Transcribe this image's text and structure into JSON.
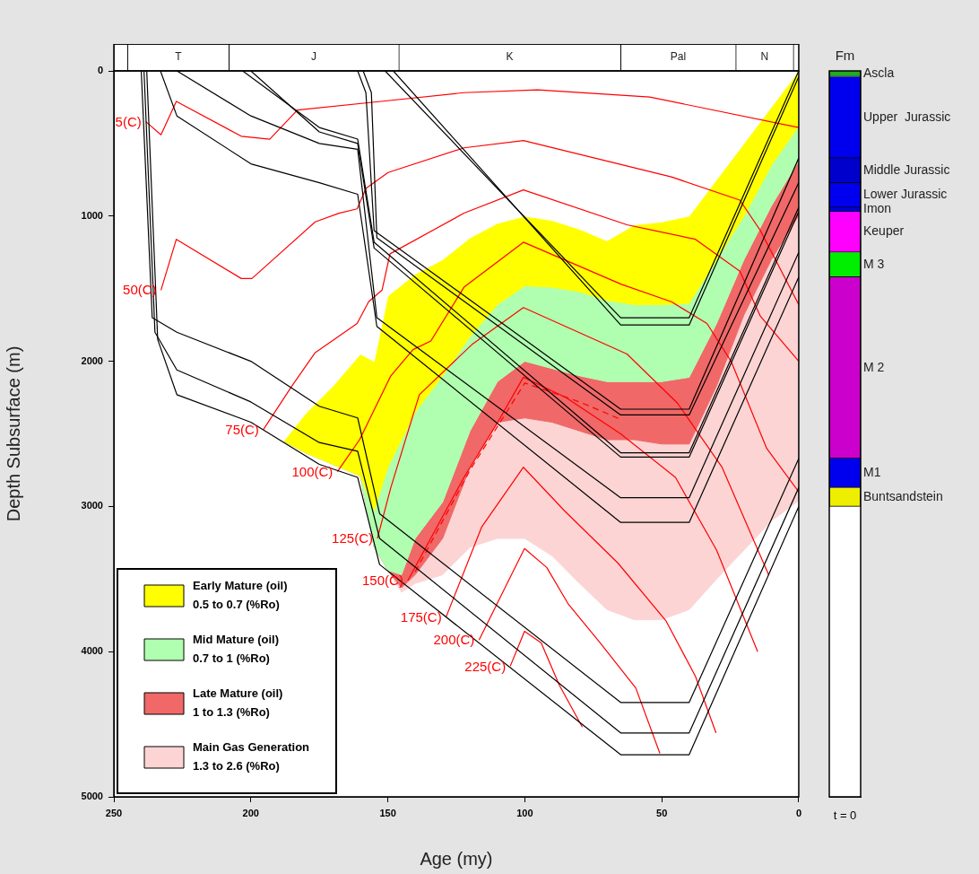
{
  "chart_data": [
    {
      "type": "bar",
      "stacked": true,
      "orientation": "horizontal",
      "categories": [
        null
      ],
      "xlim": [
        250,
        0
      ],
      "tick_labels": false,
      "series": [
        {
          "color": "#ffffff",
          "values": [
            2
          ]
        },
        {
          "name": "N",
          "color": "#ffffff",
          "values": [
            21
          ]
        },
        {
          "name": "Pal",
          "color": "#ffffff",
          "values": [
            42
          ]
        },
        {
          "name": "K",
          "color": "#ffffff",
          "values": [
            81
          ]
        },
        {
          "name": "J",
          "color": "#ffffff",
          "values": [
            62
          ]
        },
        {
          "name": "T",
          "color": "#ffffff",
          "values": [
            37
          ]
        },
        {
          "color": "#ffffff",
          "values": [
            5
          ]
        }
      ]
    },
    {
      "type": "line",
      "xlabel": "Age (my)",
      "ylabel": "Depth Subsurface (m)",
      "xlim": [
        250,
        0
      ],
      "xticks": [
        250,
        200,
        150,
        100,
        50,
        0
      ],
      "ylim": [
        5000,
        0
      ],
      "yticks": [
        0,
        1000,
        2000,
        3000,
        4000,
        5000
      ],
      "legend": "bottom left",
      "stacked": true,
      "series": [
        {
          "type": "area",
          "color": "#ffffff",
          "x": [
            188,
            180,
            170,
            160,
            155,
            150,
            145,
            140,
            130,
            120,
            110,
            100,
            90,
            80,
            70,
            60,
            50,
            40,
            30,
            20,
            10,
            0
          ],
          "values": [
            2550,
            2360,
            2170,
            1950,
            2000,
            1550,
            1475,
            1400,
            1300,
            1150,
            1050,
            1000,
            1030,
            1090,
            1170,
            1060,
            1040,
            1000,
            750,
            500,
            250,
            0
          ]
        },
        {
          "type": "area",
          "name": "Early Mature (oil)\n0.5 to 0.7 (%Ro)",
          "color": "#ffff00",
          "x": [
            188,
            180,
            170,
            160,
            155,
            150,
            145,
            140,
            130,
            120,
            110,
            100,
            90,
            80,
            70,
            60,
            50,
            40,
            30,
            20,
            10,
            0
          ],
          "values": [
            0,
            270,
            540,
            840,
            1030,
            1180,
            1065,
            950,
            800,
            680,
            560,
            480,
            460,
            430,
            410,
            550,
            570,
            600,
            550,
            500,
            400,
            380
          ]
        },
        {
          "type": "area",
          "name": "Mid Mature (oil)\n0.7 to 1 (%Ro)",
          "color": "#b0ffb0",
          "x": [
            188,
            180,
            170,
            160,
            155,
            150,
            145,
            140,
            130,
            120,
            110,
            100,
            90,
            80,
            70,
            60,
            50,
            40,
            30,
            20,
            10,
            0
          ],
          "values": [
            0,
            0,
            0,
            0,
            250,
            710,
            930,
            870,
            870,
            650,
            530,
            520,
            560,
            580,
            560,
            530,
            530,
            510,
            440,
            300,
            280,
            240
          ]
        },
        {
          "type": "area",
          "name": "Late Mature (oil)\n1 to 1.3 (%Ro)",
          "color": "#f06868",
          "x": [
            188,
            180,
            170,
            160,
            155,
            150,
            145,
            140,
            130,
            120,
            110,
            100,
            90,
            80,
            70,
            60,
            50,
            40,
            30,
            20,
            10,
            0
          ],
          "values": [
            0,
            0,
            0,
            0,
            0,
            0,
            90,
            250,
            250,
            250,
            280,
            390,
            370,
            380,
            400,
            400,
            430,
            460,
            430,
            380,
            370,
            375
          ]
        },
        {
          "type": "area",
          "name": "Main Gas Generation\n1.3 to 2.6 (%Ro)",
          "color": "#fcd4d4",
          "x": [
            188,
            180,
            170,
            160,
            155,
            150,
            145,
            140,
            130,
            120,
            110,
            100,
            90,
            80,
            70,
            60,
            50,
            40,
            30,
            20,
            10,
            0
          ],
          "values": [
            0,
            0,
            0,
            0,
            0,
            0,
            30,
            60,
            250,
            550,
            800,
            830,
            920,
            1050,
            1170,
            1240,
            1210,
            1140,
            1330,
            1620,
            1800,
            1965
          ]
        },
        {
          "type": "line",
          "color": "#000000",
          "x": [
            151,
            65,
            40,
            0
          ],
          "values": [
            0,
            1700,
            1700,
            0
          ]
        },
        {
          "type": "line",
          "color": "#000000",
          "x": [
            148,
            65,
            40,
            0
          ],
          "values": [
            0,
            1750,
            1750,
            40
          ]
        },
        {
          "type": "line",
          "color": "#000000",
          "x": [
            161,
            158,
            155,
            65,
            40,
            0
          ],
          "values": [
            0,
            150,
            1100,
            2330,
            2330,
            600
          ]
        },
        {
          "type": "line",
          "color": "#000000",
          "x": [
            159,
            156,
            154,
            65,
            40,
            0
          ],
          "values": [
            0,
            150,
            1150,
            2370,
            2370,
            770
          ]
        },
        {
          "type": "line",
          "color": "#000000",
          "x": [
            203,
            175,
            161,
            155,
            65,
            40,
            0
          ],
          "values": [
            0,
            390,
            470,
            1180,
            2630,
            2630,
            940
          ]
        },
        {
          "type": "line",
          "color": "#000000",
          "x": [
            200,
            175,
            161,
            155,
            65,
            40,
            0
          ],
          "values": [
            0,
            420,
            500,
            1220,
            2660,
            2660,
            970
          ]
        },
        {
          "type": "line",
          "color": "#000000",
          "x": [
            227,
            200,
            175,
            161,
            154,
            65,
            40,
            0
          ],
          "values": [
            0,
            310,
            500,
            540,
            1700,
            2940,
            2940,
            1250
          ]
        },
        {
          "type": "line",
          "color": "#000000",
          "x": [
            233,
            227,
            200,
            175,
            161,
            154,
            65,
            40,
            0
          ],
          "values": [
            0,
            310,
            640,
            770,
            850,
            1760,
            3110,
            3110,
            1420
          ]
        },
        {
          "type": "line",
          "color": "#000000",
          "x": [
            240,
            236,
            227,
            200,
            175,
            161,
            153,
            65,
            40,
            0
          ],
          "values": [
            0,
            1700,
            1800,
            2000,
            2310,
            2390,
            3050,
            4350,
            4350,
            2670
          ]
        },
        {
          "type": "line",
          "color": "#000000",
          "x": [
            239,
            235,
            227,
            200,
            175,
            161,
            153,
            65,
            40,
            0
          ],
          "values": [
            0,
            1800,
            2060,
            2280,
            2560,
            2620,
            3220,
            4560,
            4560,
            2870
          ]
        },
        {
          "type": "line",
          "color": "#000000",
          "x": [
            238,
            234,
            227,
            200,
            175,
            161,
            153,
            65,
            40,
            0
          ],
          "values": [
            0,
            1850,
            2230,
            2420,
            2710,
            2800,
            3400,
            4710,
            4710,
            3000
          ]
        },
        {
          "type": "line",
          "name": "5(C)",
          "color": "#ff0000",
          "x": [
            238.3,
            232.8,
            227.2,
            203.5,
            193.1,
            183,
            152.5,
            122.2,
            95.3,
            54.4,
            0
          ],
          "values": [
            350,
            440,
            210,
            450,
            470,
            270,
            210,
            150,
            130,
            180,
            390
          ]
        },
        {
          "type": "line",
          "name": "50(C)",
          "color": "#ff0000",
          "x": [
            232.8,
            227.2,
            203.5,
            199.6,
            176.5,
            167.8,
            161.2,
            158,
            149.9,
            122.2,
            100.5,
            46.5,
            21.5,
            14,
            0
          ],
          "values": [
            1510,
            1160,
            1430,
            1430,
            1040,
            980,
            950,
            810,
            700,
            530,
            480,
            730,
            890,
            1100,
            1610
          ]
        },
        {
          "type": "line",
          "name": "75(C)",
          "color": "#ff0000",
          "x": [
            195.4,
            185,
            176.5,
            161.2,
            157,
            152.1,
            149.2,
            122.2,
            100.5,
            62.7,
            37.7,
            21.5,
            14,
            0
          ],
          "values": [
            2470,
            2170,
            1940,
            1740,
            1590,
            1510,
            1260,
            980,
            820,
            1060,
            1160,
            1380,
            1690,
            2000
          ]
        },
        {
          "type": "line",
          "name": "100(C)",
          "color": "#ff0000",
          "x": [
            168.4,
            160.3,
            148.9,
            140.8,
            134.3,
            122.2,
            100.5,
            64.7,
            46.5,
            33.5,
            24.7,
            11.7,
            0
          ],
          "values": [
            2760,
            2540,
            2100,
            1920,
            1860,
            1490,
            1180,
            1470,
            1590,
            1740,
            2000,
            2600,
            2900
          ]
        },
        {
          "type": "line",
          "name": "125(C)",
          "color": "#ff0000",
          "x": [
            153.8,
            148.9,
            138.5,
            119,
            100.5,
            62.7,
            44.2,
            28,
            11
          ],
          "values": [
            3220,
            2870,
            2230,
            1880,
            1630,
            1950,
            2290,
            2730,
            3470
          ]
        },
        {
          "type": "line",
          "name": "150(C)",
          "color": "#ff0000",
          "x": [
            142.7,
            122.2,
            110.2,
            100.5,
            85,
            65,
            45,
            30,
            15
          ],
          "values": [
            3510,
            2800,
            2430,
            2110,
            2250,
            2500,
            2800,
            3300,
            4000
          ]
        },
        {
          "type": "line",
          "name": "175(C)",
          "color": "#ff0000",
          "x": [
            128.7,
            115.7,
            100.5,
            85.5,
            66,
            48.4,
            37.7,
            30.2
          ],
          "values": [
            3760,
            3140,
            2730,
            3030,
            3390,
            3790,
            4170,
            4560
          ]
        },
        {
          "type": "line",
          "name": "200(C)",
          "color": "#ff0000",
          "x": [
            116.7,
            100.1,
            92,
            84.2,
            72.5,
            59.5,
            50.7
          ],
          "values": [
            3920,
            3290,
            3420,
            3670,
            3940,
            4250,
            4700
          ]
        },
        {
          "type": "line",
          "name": "225(C)",
          "color": "#ff0000",
          "x": [
            105.3,
            100.1,
            94,
            87.4,
            79
          ],
          "values": [
            4100,
            3860,
            3940,
            4230,
            4520
          ]
        },
        {
          "type": "line",
          "color": "#ff0000",
          "line_style": "dashed",
          "x": [
            140,
            120,
            100,
            80,
            65
          ],
          "values": [
            3450,
            2750,
            2150,
            2280,
            2400
          ]
        }
      ]
    },
    {
      "type": "bar",
      "stacked": true,
      "title": "Fm",
      "categories": [
        "t = 0"
      ],
      "ylim": [
        5000,
        0
      ],
      "tick_labels": "x",
      "series": [
        {
          "name": "Ascla",
          "color": "#22aa22",
          "values": [
            40
          ]
        },
        {
          "name": "Upper  Jurassic",
          "color": "#0000ee",
          "values": [
            560
          ]
        },
        {
          "name": "Middle Jurassic",
          "color": "#0000cc",
          "values": [
            170
          ]
        },
        {
          "name": "Lower Jurassic",
          "color": "#0000ee",
          "values": [
            170
          ]
        },
        {
          "name": "Imon",
          "color": "#0000dd",
          "values": [
            30
          ]
        },
        {
          "name": "Keuper",
          "color": "#ff00ff",
          "values": [
            280
          ]
        },
        {
          "name": "M 3",
          "color": "#00ee00",
          "values": [
            170
          ]
        },
        {
          "name": "M 2",
          "color": "#cc00cc",
          "values": [
            1250
          ]
        },
        {
          "name": "M1",
          "color": "#0000ee",
          "values": [
            200
          ]
        },
        {
          "name": "Buntsandstein",
          "color": "#eeee00",
          "values": [
            130
          ]
        }
      ]
    }
  ]
}
